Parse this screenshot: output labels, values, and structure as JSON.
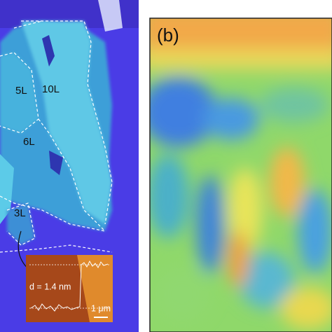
{
  "panel_a": {
    "layer_labels": [
      "5L",
      "10L",
      "6L",
      "3L"
    ],
    "inset": {
      "thickness": "d = 1.4 nm",
      "scale_bar": "1 μm"
    }
  },
  "panel_b": {
    "label": "(b)"
  }
}
